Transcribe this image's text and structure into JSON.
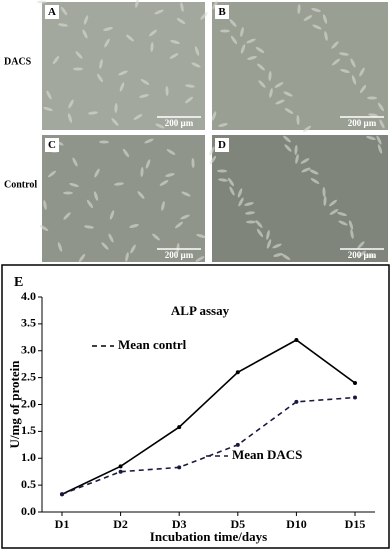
{
  "row_labels": [
    "DACS",
    "Control"
  ],
  "panels": [
    {
      "label": "A",
      "scale": "200 µm"
    },
    {
      "label": "B",
      "scale": "200 µm"
    },
    {
      "label": "C",
      "scale": "200 µm"
    },
    {
      "label": "D",
      "scale": "200 µm"
    }
  ],
  "chart_data": {
    "type": "line",
    "panel_label": "E",
    "title": "ALP assay",
    "x_label": "Incubation time/days",
    "y_label": "U/mg of protein",
    "categories": [
      "D1",
      "D2",
      "D3",
      "D5",
      "D10",
      "D15"
    ],
    "series": [
      {
        "name": "Mean contrl",
        "color": "#000000",
        "line_style": "solid",
        "values": [
          0.33,
          0.85,
          1.58,
          2.6,
          3.2,
          2.4
        ]
      },
      {
        "name": "Mean DACS",
        "color": "#1a1a40",
        "line_style": "dashed",
        "values": [
          0.33,
          0.75,
          0.83,
          1.25,
          2.05,
          2.13
        ]
      }
    ],
    "ylim": [
      0,
      4.0
    ],
    "yticks": [
      {
        "value": 0,
        "label": "0.0"
      },
      {
        "value": 0.5,
        "label": "0.5"
      },
      {
        "value": 1,
        "label": "1.0"
      },
      {
        "value": 1.5,
        "label": "1.5"
      },
      {
        "value": 2,
        "label": "2.0"
      },
      {
        "value": 2.5,
        "label": "2.5"
      },
      {
        "value": 3,
        "label": "3.0"
      },
      {
        "value": 3.5,
        "label": "3.5"
      },
      {
        "value": 4,
        "label": "4.0"
      }
    ]
  }
}
